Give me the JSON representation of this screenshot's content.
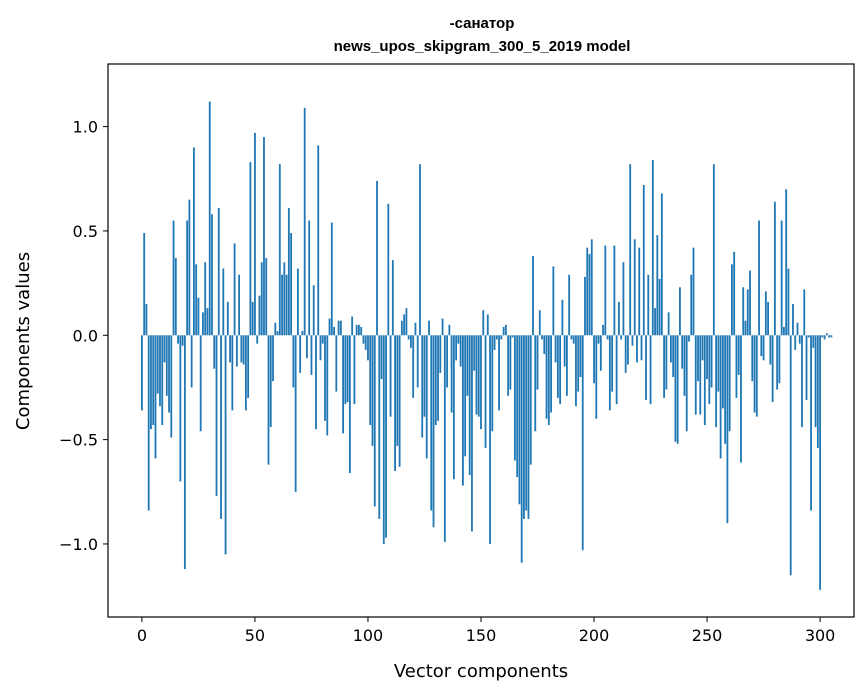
{
  "chart_data": {
    "type": "bar",
    "title_line1": "-санатор",
    "title_line2": "news_upos_skipgram_300_5_2019 model",
    "xlabel": "Vector components",
    "ylabel": "Components values",
    "xlim": [
      -15,
      315
    ],
    "ylim": [
      -1.35,
      1.3
    ],
    "xticks": [
      0,
      50,
      100,
      150,
      200,
      250,
      300
    ],
    "xtick_labels": [
      "0",
      "50",
      "100",
      "150",
      "200",
      "250",
      "300"
    ],
    "yticks": [
      -1.0,
      -0.5,
      0.0,
      0.5,
      1.0
    ],
    "ytick_labels": [
      "−1.0",
      "−0.5",
      "0.0",
      "0.5",
      "1.0"
    ],
    "bar_color": "#1f77b4",
    "values": [
      -0.36,
      0.49,
      0.15,
      -0.84,
      -0.45,
      -0.43,
      -0.59,
      -0.28,
      -0.34,
      -0.43,
      -0.13,
      -0.29,
      -0.37,
      -0.49,
      0.55,
      0.37,
      -0.04,
      -0.7,
      -0.05,
      -1.12,
      0.55,
      0.65,
      -0.25,
      0.9,
      0.34,
      0.18,
      -0.46,
      0.11,
      0.35,
      0.13,
      1.12,
      0.58,
      -0.16,
      -0.77,
      0.61,
      -0.88,
      0.32,
      -1.05,
      0.16,
      -0.13,
      -0.36,
      0.44,
      -0.15,
      0.29,
      -0.13,
      -0.14,
      -0.36,
      -0.3,
      0.83,
      0.16,
      0.97,
      -0.04,
      0.19,
      0.35,
      0.95,
      0.37,
      -0.62,
      -0.44,
      -0.22,
      0.06,
      0.02,
      0.82,
      0.29,
      0.35,
      0.29,
      0.61,
      0.49,
      -0.25,
      -0.75,
      0.32,
      -0.18,
      0.02,
      1.09,
      -0.11,
      0.55,
      -0.19,
      0.24,
      -0.45,
      0.91,
      -0.12,
      -0.04,
      -0.41,
      -0.48,
      0.08,
      0.54,
      0.04,
      -0.27,
      0.07,
      0.07,
      -0.47,
      -0.33,
      -0.32,
      -0.66,
      0.09,
      -0.33,
      0.05,
      0.05,
      0.04,
      -0.04,
      -0.07,
      -0.12,
      -0.43,
      -0.53,
      -0.82,
      0.74,
      -0.88,
      -0.21,
      -1.0,
      -0.97,
      0.63,
      -0.39,
      0.36,
      -0.65,
      -0.53,
      -0.63,
      0.07,
      0.1,
      0.13,
      -0.02,
      -0.06,
      -0.3,
      0.06,
      -0.25,
      0.82,
      -0.49,
      -0.39,
      -0.59,
      0.07,
      -0.84,
      -0.92,
      -0.43,
      -0.41,
      -0.18,
      0.08,
      -0.99,
      -0.25,
      0.05,
      -0.37,
      -0.69,
      -0.12,
      -0.04,
      -0.15,
      -0.72,
      -0.58,
      -0.29,
      -0.67,
      -0.94,
      -0.17,
      -0.38,
      -0.39,
      -0.45,
      0.12,
      -0.54,
      0.1,
      -1.0,
      -0.46,
      -0.07,
      -0.02,
      -0.36,
      -0.02,
      0.04,
      0.05,
      -0.29,
      -0.26,
      -0.01,
      -0.6,
      -0.68,
      -0.81,
      -1.09,
      -0.88,
      -0.84,
      -0.88,
      -0.62,
      0.38,
      -0.46,
      -0.26,
      0.12,
      -0.02,
      -0.09,
      -0.4,
      -0.43,
      -0.37,
      0.33,
      -0.13,
      -0.3,
      -0.33,
      0.17,
      -0.15,
      -0.29,
      0.29,
      -0.02,
      -0.04,
      -0.34,
      -0.27,
      -0.2,
      -1.03,
      0.28,
      0.42,
      0.39,
      0.46,
      -0.23,
      -0.4,
      -0.04,
      -0.17,
      0.05,
      0.43,
      -0.02,
      -0.36,
      -0.27,
      0.43,
      -0.33,
      0.16,
      -0.02,
      0.35,
      -0.18,
      -0.14,
      0.82,
      -0.05,
      0.46,
      -0.13,
      0.42,
      -0.12,
      0.72,
      -0.31,
      0.29,
      -0.33,
      0.84,
      0.13,
      0.48,
      0.27,
      0.68,
      -0.3,
      -0.26,
      0.11,
      -0.13,
      -0.2,
      -0.51,
      -0.52,
      0.23,
      -0.16,
      -0.29,
      -0.46,
      -0.03,
      0.29,
      0.42,
      -0.38,
      -0.22,
      -0.38,
      -0.12,
      -0.43,
      -0.21,
      -0.33,
      -0.25,
      0.82,
      -0.44,
      -0.27,
      -0.59,
      -0.35,
      -0.52,
      -0.9,
      -0.46,
      0.34,
      0.4,
      -0.3,
      -0.19,
      -0.61,
      0.23,
      0.07,
      0.22,
      0.31,
      -0.22,
      -0.37,
      -0.39,
      0.55,
      -0.1,
      -0.12,
      0.21,
      0.16,
      -0.14,
      -0.32,
      0.64,
      -0.26,
      -0.23,
      0.55,
      0.04,
      0.7,
      0.32,
      -1.15,
      0.15,
      -0.07,
      0.06,
      -0.04,
      -0.44,
      0.22,
      -0.31,
      -0.01,
      -0.84,
      -0.06,
      -0.44,
      -0.54,
      -1.22,
      -0.01,
      -0.02,
      0.01,
      -0.01,
      -0.01
    ]
  }
}
